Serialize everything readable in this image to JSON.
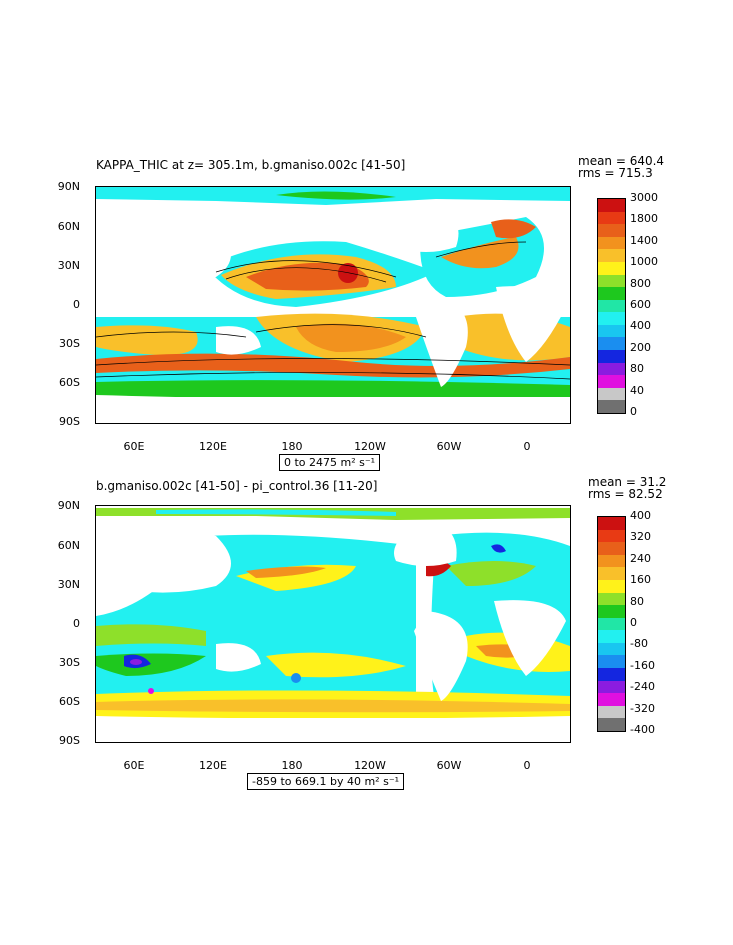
{
  "panel1": {
    "title": "KAPPA_THIC at z= 305.1m, b.gmaniso.002c [41-50]",
    "stats": "mean = 640.4\nrms = 715.3",
    "range": "0 to 2475 m² s⁻¹",
    "colorbar_labels": [
      "3000",
      "1800",
      "1400",
      "1000",
      "800",
      "600",
      "400",
      "200",
      "80",
      "40",
      "0"
    ],
    "colorbar_colors": [
      "#cc1111",
      "#e83a14",
      "#e8601a",
      "#f2921e",
      "#f9c02a",
      "#fff21a",
      "#8ee02a",
      "#1ec81e",
      "#21e6a6",
      "#22f0f0",
      "#19c6f0",
      "#1a8ef0",
      "#1426e0",
      "#8b1ce0",
      "#e010e0",
      "#c8c8c8",
      "#707070"
    ]
  },
  "panel2": {
    "title": "b.gmaniso.002c [41-50] - pi_control.36 [11-20]",
    "stats": "mean = 31.2\nrms = 82.52",
    "range": "-859 to 669.1 by 40 m² s⁻¹",
    "colorbar_labels": [
      "400",
      "320",
      "240",
      "160",
      "80",
      "0",
      "-80",
      "-160",
      "-240",
      "-320",
      "-400"
    ],
    "colorbar_colors": [
      "#cc1111",
      "#e83a14",
      "#e8601a",
      "#f2921e",
      "#f9c02a",
      "#fff21a",
      "#8ee02a",
      "#1ec81e",
      "#21e6a6",
      "#22f0f0",
      "#19c6f0",
      "#1a8ef0",
      "#1426e0",
      "#8b1ce0",
      "#e010e0",
      "#c8c8c8",
      "#707070"
    ]
  },
  "axes": {
    "lat_labels": [
      "90N",
      "60N",
      "30N",
      "0",
      "30S",
      "60S",
      "90S"
    ],
    "lon_labels": [
      "60E",
      "120E",
      "180",
      "120W",
      "60W",
      "0"
    ]
  }
}
